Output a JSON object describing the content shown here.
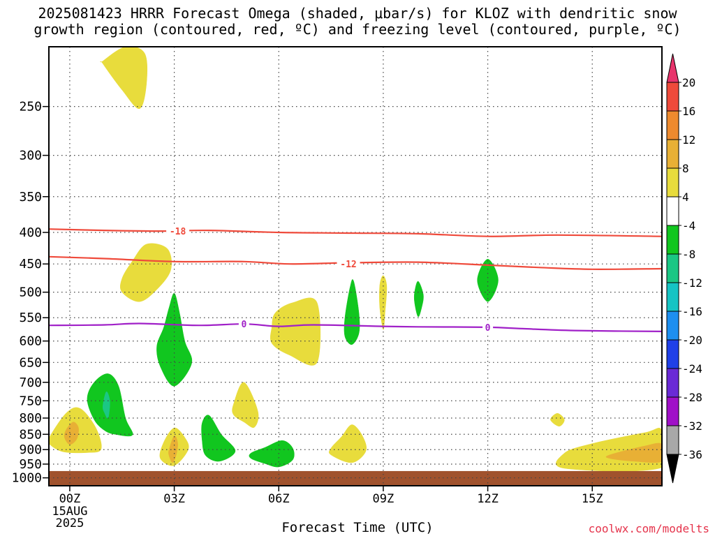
{
  "title": {
    "line1": "2025081423 HRRR Forecast Omega (shaded, μbar/s) for KLOZ with dendritic snow",
    "line2": "growth region (contoured, red, ºC) and freezing level (contoured, purple, ºC)"
  },
  "xlabel": "Forecast Time (UTC)",
  "watermark": "coolwx.com/modelts",
  "date_label": [
    "15AUG",
    "2025"
  ],
  "chart_data": {
    "type": "heatmap",
    "x_ticks": [
      "00Z",
      "03Z",
      "06Z",
      "09Z",
      "12Z",
      "15Z"
    ],
    "x_tick_hours": [
      0,
      3,
      6,
      9,
      12,
      15
    ],
    "xlim_hours": [
      -0.6,
      17
    ],
    "y_ticks": [
      250,
      300,
      350,
      400,
      450,
      500,
      550,
      600,
      650,
      700,
      750,
      800,
      850,
      900,
      950,
      1000
    ],
    "ylim_hPa": [
      200,
      1030
    ],
    "grid": true,
    "surface_hPa": 975,
    "colorbar": {
      "levels": [
        20,
        16,
        12,
        8,
        4,
        -4,
        -8,
        -12,
        -16,
        -20,
        -24,
        -28,
        -32,
        -36
      ],
      "colors": [
        "#e8346c",
        "#ef4a3b",
        "#ee8a2e",
        "#e8b035",
        "#e8dc3c",
        "#ffffff",
        "#11c61f",
        "#1bc784",
        "#16c4c4",
        "#1d8ff0",
        "#2040e8",
        "#6a2ad6",
        "#a010c8",
        "#a8a8a8",
        "#000000"
      ]
    },
    "contours": [
      {
        "label": "-18",
        "color": "#ef4a3b",
        "points": [
          [
            -0.6,
            395
          ],
          [
            1,
            397
          ],
          [
            2.7,
            398
          ],
          [
            4,
            397
          ],
          [
            6,
            400
          ],
          [
            8,
            401
          ],
          [
            10,
            402
          ],
          [
            12,
            406
          ],
          [
            14,
            404
          ],
          [
            17,
            406
          ]
        ]
      },
      {
        "label": "-12",
        "color": "#ef4a3b",
        "points": [
          [
            -0.6,
            438
          ],
          [
            1,
            441
          ],
          [
            3,
            446
          ],
          [
            5,
            446
          ],
          [
            6.3,
            450
          ],
          [
            8,
            448
          ],
          [
            10,
            447
          ],
          [
            12,
            452
          ],
          [
            13.5,
            456
          ],
          [
            15,
            459
          ],
          [
            17,
            458
          ]
        ]
      },
      {
        "label": "0",
        "color": "#a020c8",
        "points": [
          [
            -0.6,
            566
          ],
          [
            1,
            565
          ],
          [
            2,
            562
          ],
          [
            3.7,
            566
          ],
          [
            5,
            563
          ],
          [
            6,
            568
          ],
          [
            7,
            565
          ],
          [
            9,
            568
          ],
          [
            10,
            569
          ],
          [
            12,
            570
          ],
          [
            13,
            573
          ],
          [
            14.5,
            577
          ],
          [
            17,
            579
          ]
        ]
      }
    ],
    "contour_labels": [
      {
        "text": "-18",
        "x": 3.1,
        "y": 398
      },
      {
        "text": "-12",
        "x": 8.0,
        "y": 450
      },
      {
        "text": "0",
        "x": 5.0,
        "y": 563
      },
      {
        "text": "0",
        "x": 12.0,
        "y": 570
      }
    ],
    "shaded_regions": [
      {
        "level": "4-8",
        "color": "#e8dc3c",
        "points": [
          [
            0.95,
            211
          ],
          [
            1.6,
            200
          ],
          [
            2.15,
            205
          ],
          [
            2.2,
            230
          ],
          [
            2,
            252
          ],
          [
            1.5,
            235
          ],
          [
            0.95,
            213
          ]
        ]
      },
      {
        "level": "4-8",
        "color": "#e8dc3c",
        "points": [
          [
            1.5,
            475
          ],
          [
            1.8,
            445
          ],
          [
            2.2,
            418
          ],
          [
            2.8,
            425
          ],
          [
            2.9,
            460
          ],
          [
            2.5,
            495
          ],
          [
            2,
            518
          ],
          [
            1.5,
            500
          ]
        ]
      },
      {
        "level": "4-8",
        "color": "#e8dc3c",
        "points": [
          [
            2.7,
            875
          ],
          [
            3,
            830
          ],
          [
            3.3,
            860
          ],
          [
            3.4,
            900
          ],
          [
            3,
            955
          ],
          [
            2.6,
            930
          ]
        ]
      },
      {
        "level": "4-8",
        "color": "#e8dc3c",
        "points": [
          [
            4.7,
            760
          ],
          [
            5,
            700
          ],
          [
            5.4,
            780
          ],
          [
            5.3,
            828
          ],
          [
            5,
            812
          ],
          [
            4.7,
            790
          ]
        ]
      },
      {
        "level": "4-8",
        "color": "#e8dc3c",
        "points": [
          [
            5.8,
            570
          ],
          [
            5.9,
            540
          ],
          [
            6.4,
            520
          ],
          [
            7.1,
            520
          ],
          [
            7.1,
            650
          ],
          [
            6.3,
            632
          ],
          [
            5.8,
            605
          ]
        ]
      },
      {
        "level": "4-8",
        "color": "#e8dc3c",
        "points": [
          [
            7.5,
            895
          ],
          [
            7.8,
            858
          ],
          [
            8.1,
            820
          ],
          [
            8.4,
            855
          ],
          [
            8.5,
            905
          ],
          [
            8.1,
            945
          ],
          [
            7.5,
            918
          ]
        ]
      },
      {
        "level": "4-8",
        "color": "#e8dc3c",
        "points": [
          [
            8.9,
            487
          ],
          [
            9,
            470
          ],
          [
            9.1,
            490
          ],
          [
            9.05,
            540
          ],
          [
            9,
            575
          ],
          [
            8.9,
            530
          ]
        ]
      },
      {
        "level": "4-8",
        "color": "#e8dc3c",
        "points": [
          [
            13.8,
            805
          ],
          [
            14,
            786
          ],
          [
            14.2,
            805
          ],
          [
            14.05,
            825
          ]
        ]
      },
      {
        "level": "4-8",
        "color": "#e8dc3c",
        "points": [
          [
            -0.6,
            862
          ],
          [
            -0.1,
            785
          ],
          [
            0.3,
            772
          ],
          [
            0.75,
            830
          ],
          [
            0.9,
            898
          ],
          [
            0.5,
            910
          ],
          [
            -0.2,
            907
          ],
          [
            -0.6,
            880
          ]
        ]
      },
      {
        "level": "4-8",
        "color": "#e8dc3c",
        "points": [
          [
            14.2,
            912
          ],
          [
            15,
            880
          ],
          [
            16.5,
            845
          ],
          [
            17,
            838
          ],
          [
            17,
            962
          ],
          [
            14.2,
            965
          ]
        ]
      },
      {
        "level": "8-12",
        "color": "#e8b035",
        "points": [
          [
            -0.1,
            835
          ],
          [
            0.1,
            812
          ],
          [
            0.25,
            830
          ],
          [
            0.2,
            865
          ],
          [
            0,
            883
          ],
          [
            -0.15,
            860
          ]
        ]
      },
      {
        "level": "8-12",
        "color": "#e8b035",
        "points": [
          [
            2.85,
            900
          ],
          [
            3,
            855
          ],
          [
            3.1,
            880
          ],
          [
            3.05,
            920
          ],
          [
            2.95,
            945
          ],
          [
            2.85,
            920
          ]
        ]
      },
      {
        "level": "8-12",
        "color": "#e8b035",
        "points": [
          [
            15.5,
            918
          ],
          [
            16.5,
            888
          ],
          [
            17,
            882
          ],
          [
            17,
            940
          ],
          [
            16.2,
            940
          ],
          [
            15.5,
            930
          ]
        ]
      },
      {
        "level": "-4--8",
        "color": "#11c61f",
        "points": [
          [
            0.5,
            745
          ],
          [
            0.7,
            700
          ],
          [
            1.1,
            678
          ],
          [
            1.4,
            710
          ],
          [
            1.6,
            800
          ],
          [
            1.8,
            852
          ],
          [
            1.3,
            850
          ],
          [
            1,
            838
          ],
          [
            0.7,
            805
          ]
        ]
      },
      {
        "level": "-8--12",
        "color": "#1bc784",
        "points": [
          [
            0.95,
            765
          ],
          [
            1.05,
            725
          ],
          [
            1.15,
            752
          ],
          [
            1.1,
            800
          ],
          [
            1,
            785
          ]
        ]
      },
      {
        "level": "-4--8",
        "color": "#11c61f",
        "points": [
          [
            2.7,
            570
          ],
          [
            2.85,
            530
          ],
          [
            3,
            502
          ],
          [
            3.15,
            540
          ],
          [
            3.3,
            600
          ],
          [
            3.5,
            652
          ],
          [
            3,
            710
          ],
          [
            2.6,
            660
          ],
          [
            2.5,
            612
          ]
        ]
      },
      {
        "level": "-4--8",
        "color": "#11c61f",
        "points": [
          [
            3.8,
            815
          ],
          [
            4,
            792
          ],
          [
            4.35,
            850
          ],
          [
            4.75,
            905
          ],
          [
            4.3,
            940
          ],
          [
            3.9,
            920
          ],
          [
            3.8,
            870
          ]
        ]
      },
      {
        "level": "-4--8",
        "color": "#11c61f",
        "points": [
          [
            5.2,
            912
          ],
          [
            5.6,
            893
          ],
          [
            6.1,
            870
          ],
          [
            6.4,
            895
          ],
          [
            6.4,
            935
          ],
          [
            6,
            960
          ],
          [
            5.6,
            948
          ],
          [
            5.2,
            930
          ]
        ]
      },
      {
        "level": "-4--8",
        "color": "#11c61f",
        "points": [
          [
            7.9,
            550
          ],
          [
            8.05,
            490
          ],
          [
            8.15,
            480
          ],
          [
            8.3,
            540
          ],
          [
            8.3,
            583
          ],
          [
            8.1,
            608
          ],
          [
            7.9,
            590
          ]
        ]
      },
      {
        "level": "-4--8",
        "color": "#11c61f",
        "points": [
          [
            9.9,
            500
          ],
          [
            10,
            480
          ],
          [
            10.15,
            505
          ],
          [
            10.1,
            530
          ],
          [
            10,
            548
          ],
          [
            9.9,
            520
          ]
        ]
      },
      {
        "level": "-4--8",
        "color": "#11c61f",
        "points": [
          [
            11.7,
            478
          ],
          [
            12,
            442
          ],
          [
            12.3,
            478
          ],
          [
            12,
            518
          ]
        ]
      }
    ]
  }
}
